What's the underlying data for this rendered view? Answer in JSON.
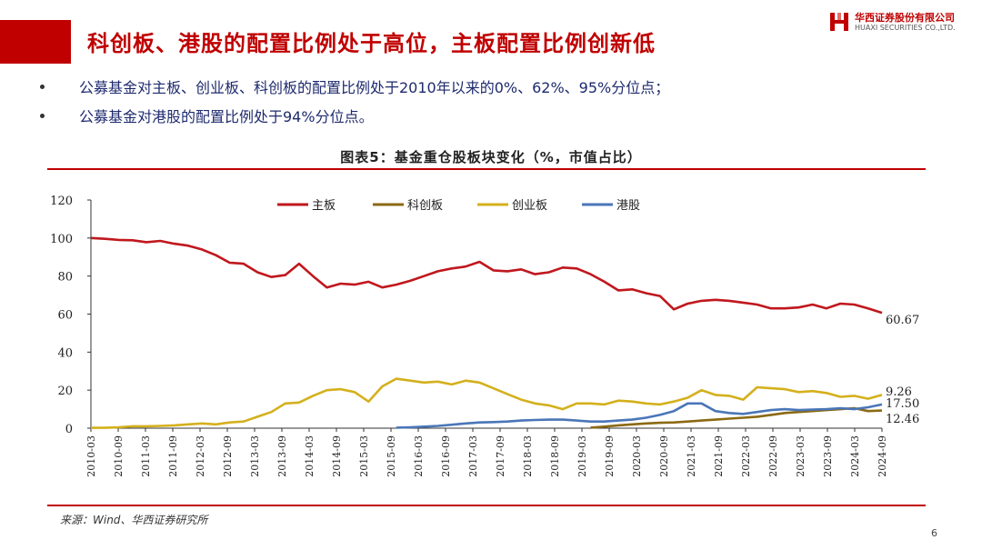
{
  "header": {
    "title": "科创板、港股的配置比例处于高位，主板配置比例创新低",
    "logo_cn": "华西证券股份有限公司",
    "logo_en": "HUAXI SECURITIES CO.,LTD."
  },
  "bullets": [
    "公募基金对主板、创业板、科创板的配置比例处于2010年以来的0%、62%、95%分位点；",
    "公募基金对港股的配置比例处于94%分位点。"
  ],
  "colors": {
    "accent": "#c00000",
    "main_board": "#c0171d",
    "star_market": "#8b6914",
    "chinext": "#d4b01c",
    "hk_stocks": "#4a76b8"
  },
  "chart_data": {
    "type": "line",
    "title": "图表5：基金重仓股板块变化（%，市值占比）",
    "ylim": [
      0,
      120
    ],
    "yticks": [
      0,
      20,
      40,
      60,
      80,
      100,
      120
    ],
    "xticks": [
      "2010-03",
      "2010-09",
      "2011-03",
      "2011-09",
      "2012-03",
      "2012-09",
      "2013-03",
      "2013-09",
      "2014-03",
      "2014-09",
      "2015-03",
      "2015-09",
      "2016-03",
      "2016-09",
      "2017-03",
      "2017-09",
      "2018-03",
      "2018-09",
      "2019-03",
      "2019-09",
      "2020-03",
      "2020-09",
      "2021-03",
      "2021-09",
      "2022-03",
      "2022-09",
      "2023-03",
      "2023-09",
      "2024-03",
      "2024-09"
    ],
    "legend_position": "top",
    "series": [
      {
        "name": "主板",
        "end_label": "60.67",
        "values": [
          100,
          99.6,
          99,
          98.8,
          97.8,
          98.5,
          97,
          96,
          94,
          91,
          87,
          86.5,
          82,
          79.5,
          80.5,
          86.5,
          80,
          74,
          76,
          75.5,
          77,
          74,
          75.5,
          77.5,
          80,
          82.5,
          84,
          85,
          87.5,
          83,
          82.5,
          83.5,
          81,
          82,
          84.5,
          84,
          81,
          77,
          72.5,
          73,
          71,
          69.5,
          62.5,
          65.5,
          67,
          67.5,
          67,
          66,
          65,
          63,
          63,
          63.5,
          65,
          63,
          65.5,
          65,
          63,
          60.67
        ]
      },
      {
        "name": "科创板",
        "end_label": "9.26",
        "values": [
          null,
          null,
          null,
          null,
          null,
          null,
          null,
          null,
          null,
          null,
          null,
          null,
          null,
          null,
          null,
          null,
          null,
          null,
          null,
          null,
          null,
          null,
          null,
          null,
          null,
          null,
          null,
          null,
          null,
          null,
          null,
          null,
          null,
          null,
          null,
          null,
          0.3,
          0.8,
          1.5,
          2,
          2.5,
          2.8,
          3,
          3.5,
          4,
          4.5,
          5,
          5.5,
          6,
          7,
          8,
          8.5,
          9,
          9.5,
          10,
          10.5,
          9,
          9.26
        ]
      },
      {
        "name": "创业板",
        "end_label": "17.50",
        "values": [
          0.2,
          0.2,
          0.5,
          1,
          1,
          1.2,
          1.5,
          2,
          2.5,
          2,
          3,
          3.5,
          6,
          8.5,
          13,
          13.5,
          17,
          20,
          20.5,
          19,
          14,
          22,
          26,
          25,
          24,
          24.5,
          23,
          25,
          24,
          21,
          18,
          15,
          13,
          12,
          10,
          13,
          13,
          12.5,
          14.5,
          14,
          13,
          12.5,
          14,
          16,
          20,
          17.5,
          17,
          15,
          21.5,
          21,
          20.5,
          19,
          19.5,
          18.5,
          16.5,
          17,
          15.5,
          17.5
        ]
      },
      {
        "name": "港股",
        "end_label": "12.46",
        "values": [
          null,
          null,
          null,
          null,
          null,
          null,
          null,
          null,
          null,
          null,
          null,
          null,
          null,
          null,
          null,
          null,
          null,
          null,
          null,
          null,
          null,
          null,
          0.3,
          0.5,
          0.8,
          1.2,
          1.8,
          2.5,
          3,
          3.2,
          3.5,
          4,
          4.3,
          4.5,
          4.5,
          4,
          3.5,
          3.5,
          4,
          4.5,
          5.5,
          7,
          9,
          13,
          13,
          9,
          8,
          7.5,
          8.5,
          9.5,
          10,
          9.5,
          9.8,
          10,
          10.5,
          10,
          11,
          12.46
        ]
      }
    ],
    "source": "来源：Wind、华西证券研究所"
  },
  "page_number": "6"
}
